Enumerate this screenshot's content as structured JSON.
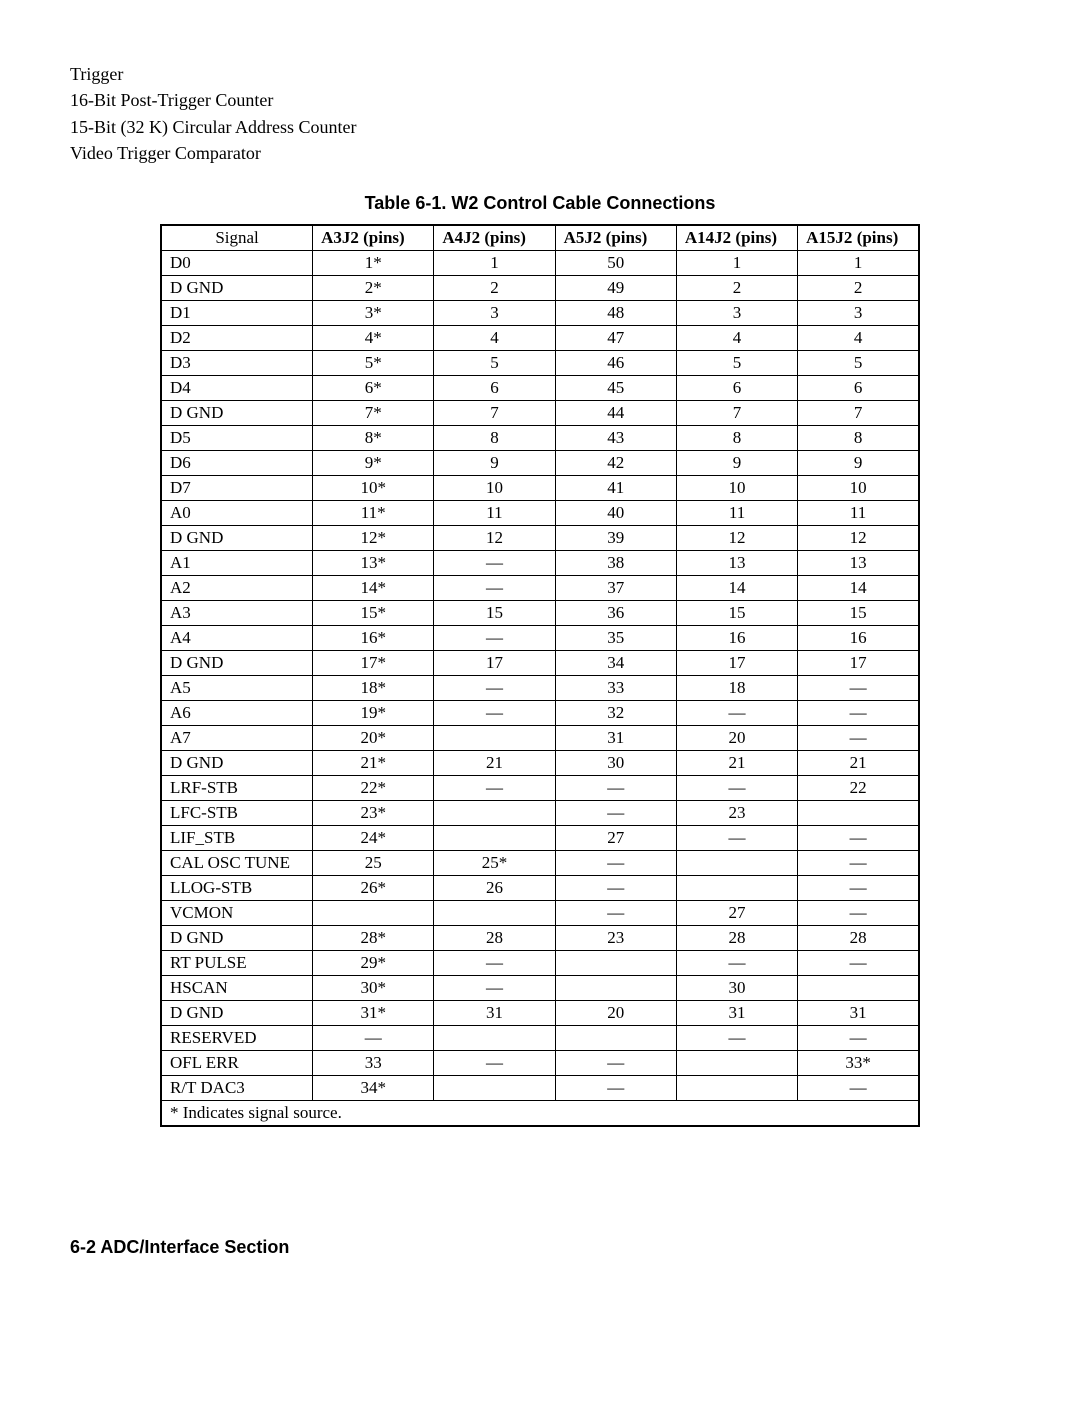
{
  "intro": {
    "lines": [
      "Trigger",
      "16-Bit Post-Trigger Counter",
      "15-Bit (32 K) Circular Address Counter",
      "Video Trigger Comparator"
    ]
  },
  "table": {
    "caption": "Table 6-1. W2 Control Cable Connections",
    "headers": {
      "signal": "Signal",
      "c1_bold": "A3J2 (pins)",
      "c2_bold": "A4J2",
      "c2_rest": " (pins)",
      "c3_bold": "A5J2",
      "c3_rest": " (pins)",
      "c4_bold": "A14J2",
      "c4_rest": " (pins)",
      "c5_bold": "A15J2",
      "c5_rest": " (pins)"
    },
    "rows": [
      {
        "sig": "D0",
        "c1": "1*",
        "c2": "1",
        "c3": "50",
        "c4": "1",
        "c5": "1"
      },
      {
        "sig": "D GND",
        "c1": "2*",
        "c2": "2",
        "c3": "49",
        "c4": "2",
        "c5": "2"
      },
      {
        "sig": "D1",
        "c1": "3*",
        "c2": "3",
        "c3": "48",
        "c4": "3",
        "c5": "3"
      },
      {
        "sig": "D2",
        "c1": "4*",
        "c2": "4",
        "c3": "47",
        "c4": "4",
        "c5": "4"
      },
      {
        "sig": "D3",
        "c1": "5*",
        "c2": "5",
        "c3": "46",
        "c4": "5",
        "c5": "5"
      },
      {
        "sig": "D4",
        "c1": "6*",
        "c2": "6",
        "c3": "45",
        "c4": "6",
        "c5": "6"
      },
      {
        "sig": "D GND",
        "c1": "7*",
        "c2": "7",
        "c3": "44",
        "c4": "7",
        "c5": "7"
      },
      {
        "sig": "D5",
        "c1": "8*",
        "c2": "8",
        "c3": "43",
        "c4": "8",
        "c5": "8"
      },
      {
        "sig": "D6",
        "c1": "9*",
        "c2": "9",
        "c3": "42",
        "c4": "9",
        "c5": "9"
      },
      {
        "sig": "D7",
        "c1": "10*",
        "c2": "10",
        "c3": "41",
        "c4": "10",
        "c5": "10"
      },
      {
        "sig": "A0",
        "c1": "11*",
        "c2": "11",
        "c3": "40",
        "c4": "11",
        "c5": "11"
      },
      {
        "sig": "D GND",
        "c1": "12*",
        "c2": "12",
        "c3": "39",
        "c4": "12",
        "c5": "12"
      },
      {
        "sig": "A1",
        "c1": "13*",
        "c2": "—",
        "c3": "38",
        "c4": "13",
        "c5": "13"
      },
      {
        "sig": "A2",
        "c1": "14*",
        "c2": "—",
        "c3": "37",
        "c4": "14",
        "c5": "14"
      },
      {
        "sig": "A3",
        "c1": "15*",
        "c2": "15",
        "c3": "36",
        "c4": "15",
        "c5": "15"
      },
      {
        "sig": "A4",
        "c1": "16*",
        "c2": "—",
        "c3": "35",
        "c4": "16",
        "c5": "16"
      },
      {
        "sig": "D GND",
        "c1": "17*",
        "c2": "17",
        "c3": "34",
        "c4": "17",
        "c5": "17"
      },
      {
        "sig": "A5",
        "c1": "18*",
        "c2": "—",
        "c3": "33",
        "c4": "18",
        "c5": "—"
      },
      {
        "sig": "A6",
        "c1": "19*",
        "c2": "—",
        "c3": "32",
        "c4": "—",
        "c5": "—"
      },
      {
        "sig": "A7",
        "c1": "20*",
        "c2": "",
        "c3": "31",
        "c4": "20",
        "c5": "—"
      },
      {
        "sig": "D GND",
        "c1": "21*",
        "c2": "21",
        "c3": "30",
        "c4": "21",
        "c5": "21"
      },
      {
        "sig": "LRF-STB",
        "c1": "22*",
        "c2": "—",
        "c3": "—",
        "c4": "—",
        "c5": "22"
      },
      {
        "sig": "LFC-STB",
        "c1": "23*",
        "c2": "",
        "c3": "—",
        "c4": "23",
        "c5": ""
      },
      {
        "sig": "LIF_STB",
        "c1": "24*",
        "c2": "",
        "c3": "27",
        "c4": "—",
        "c5": "—"
      },
      {
        "sig": "CAL OSC TUNE",
        "c1": "25",
        "c2": "25*",
        "c3": "—",
        "c4": "",
        "c5": "—"
      },
      {
        "sig": "LLOG-STB",
        "c1": "26*",
        "c2": "26",
        "c3": "—",
        "c4": "",
        "c5": "—"
      },
      {
        "sig": "VCMON",
        "c1": "",
        "c2": "",
        "c3": "—",
        "c4": "27",
        "c5": "—"
      },
      {
        "sig": "D GND",
        "c1": "28*",
        "c2": "28",
        "c3": "23",
        "c4": "28",
        "c5": "28"
      },
      {
        "sig": "RT PULSE",
        "c1": "29*",
        "c2": "—",
        "c3": "",
        "c4": "—",
        "c5": "—"
      },
      {
        "sig": "HSCAN",
        "c1": "30*",
        "c2": "—",
        "c3": "",
        "c4": "30",
        "c5": ""
      },
      {
        "sig": "D GND",
        "c1": "31*",
        "c2": "31",
        "c3": "20",
        "c4": "31",
        "c5": "31"
      },
      {
        "sig": "RESERVED",
        "c1": "—",
        "c2": "",
        "c3": "",
        "c4": "—",
        "c5": "—"
      },
      {
        "sig": "OFL ERR",
        "c1": "33",
        "c2": "—",
        "c3": "—",
        "c4": "",
        "c5": "33*"
      },
      {
        "sig": "R/T DAC3",
        "c1": "34*",
        "c2": "",
        "c3": "—",
        "c4": "",
        "c5": "—"
      }
    ],
    "footnote": "* Indicates signal source."
  },
  "footer": "6-2 ADC/Interface Section"
}
